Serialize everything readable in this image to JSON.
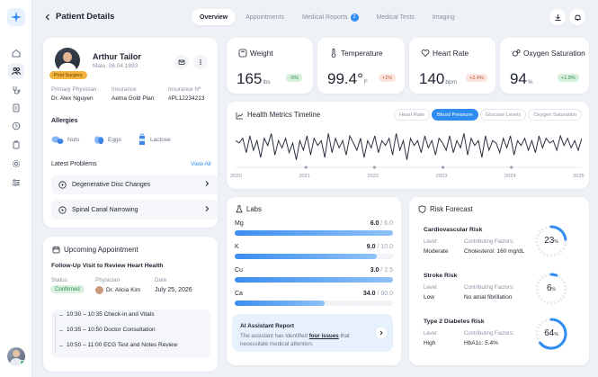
{
  "header": {
    "title": "Patient Details"
  },
  "tabs": [
    {
      "label": "Overview"
    },
    {
      "label": "Appointments"
    },
    {
      "label": "Medical Reports",
      "badge": "2"
    },
    {
      "label": "Medical Tests"
    },
    {
      "label": "Imaging"
    }
  ],
  "patient": {
    "name": "Arthur Tailor",
    "sub": "Male, 06.04.1993",
    "tag": "Post Surgery",
    "physician_label": "Primary Physician",
    "physician": "Dr. Alex Nguyen",
    "insurance_label": "Insurance",
    "insurance": "Aetna Gold Plan",
    "insurance_no_label": "Insurance Nº",
    "insurance_no": "#PL12234213",
    "allergies_title": "Allergies",
    "allergies": [
      "Nuts",
      "Eggs",
      "Lactose"
    ],
    "problems_title": "Latest Problems",
    "view_all": "View All",
    "problems": [
      "Degenerative Disc Changes",
      "Spinal Canal Narrowing"
    ]
  },
  "appointment": {
    "title": "Upcoming Appointment",
    "subtitle": "Follow-Up Visit to Review Heart Health",
    "status_label": "Status",
    "status": "Confirmed",
    "physician_label": "Physician",
    "physician": "Dr. Alicia Kim",
    "date_label": "Date",
    "date": "July 25, 2026",
    "schedule": [
      "10:30 – 10:35 Check-in and Vitals",
      "10:35 – 10:50 Doctor Consultation",
      "10:50 – 11:00 ECG Test and Notes Review"
    ]
  },
  "vitals": [
    {
      "title": "Weight",
      "value": "165",
      "unit": "lbs",
      "change": "-5%",
      "tone": "green"
    },
    {
      "title": "Temperature",
      "value": "99.4°",
      "unit": "F",
      "change": "+1%",
      "tone": "red"
    },
    {
      "title": "Heart Rate",
      "value": "140",
      "unit": "bpm",
      "change": "+2.4%",
      "tone": "red"
    },
    {
      "title": "Oxygen Saturation",
      "value": "94",
      "unit": "%",
      "change": "+1.9%",
      "tone": "green"
    }
  ],
  "timeline": {
    "title": "Health Metrics Timeline",
    "filters": [
      "Heart Rate",
      "Blood Pressure",
      "Glucose Levels",
      "Oxygen Saturation"
    ],
    "active_filter": "Blood Pressure",
    "years": [
      "2020",
      "2021",
      "2022",
      "2023",
      "2024",
      "2025"
    ],
    "series": [
      44,
      43,
      45,
      39,
      46,
      40,
      44,
      37,
      45,
      42,
      47,
      38,
      44,
      41,
      45,
      39,
      43,
      36,
      44,
      40,
      46,
      38,
      45,
      42,
      44,
      37,
      47,
      39,
      45,
      41,
      44,
      38,
      46,
      43,
      40,
      45,
      37,
      44,
      41,
      46,
      39,
      44,
      42,
      45,
      38,
      47,
      40,
      44,
      36,
      45,
      42,
      44,
      39,
      46,
      41,
      44,
      38,
      45,
      43,
      40,
      46,
      39,
      44,
      41,
      47,
      38,
      45,
      42,
      44,
      37,
      46,
      40,
      44,
      43,
      39,
      45,
      41,
      46,
      38,
      44,
      42,
      45,
      40,
      44,
      39,
      46,
      41,
      45,
      43,
      44,
      40,
      46,
      42,
      45,
      41,
      44,
      40,
      45
    ]
  },
  "labs": {
    "title": "Labs",
    "items": [
      {
        "name": "Mg",
        "value": "6.0",
        "max": "/ 6.0",
        "ratio": 1.0
      },
      {
        "name": "K",
        "value": "9.0",
        "max": "/ 10.0",
        "ratio": 0.9
      },
      {
        "name": "Cu",
        "value": "3.0",
        "max": "/ 2.5",
        "ratio": 1.0
      },
      {
        "name": "Ca",
        "value": "34.0",
        "max": "/ 60.0",
        "ratio": 0.57
      }
    ],
    "ai_title": "AI Assistant Report",
    "ai_text_1": "The assistant has identified ",
    "ai_link": "four issues",
    "ai_text_2": " that necessitate medical attention."
  },
  "risk": {
    "title": "Risk Forecast",
    "level_label": "Level:",
    "factors_label": "Contributing Factors:",
    "items": [
      {
        "name": "Cardiovascular Risk",
        "level": "Moderate",
        "factor": "Cholesterol: 160 mg/dL",
        "percent": 23,
        "percent_text": "23"
      },
      {
        "name": "Stroke Risk",
        "level": "Low",
        "factor": "No atrial fibrillation",
        "percent": 6,
        "percent_text": "6"
      },
      {
        "name": "Type 2 Diabetes Risk",
        "level": "High",
        "factor": "HbA1c: 5.4%",
        "percent": 64,
        "percent_text": "64"
      }
    ]
  },
  "colors": {
    "accent": "#2f8cf0",
    "background": "#eef1f6",
    "card": "#ffffff",
    "warning": "#f3b43f",
    "success": "#36b56e"
  }
}
